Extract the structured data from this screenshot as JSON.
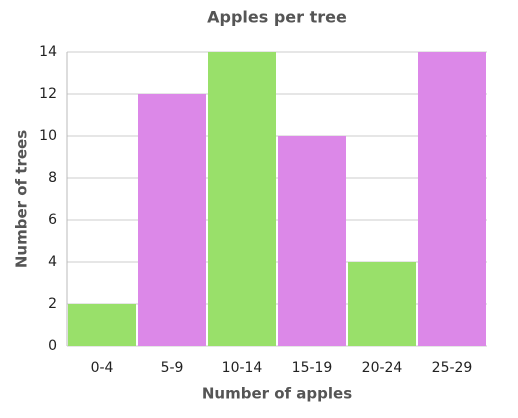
{
  "chart_data": {
    "type": "bar",
    "title": "Apples per tree",
    "x_label": "Number of apples",
    "y_label": "Number of trees",
    "categories": [
      "0-4",
      "5-9",
      "10-14",
      "15-19",
      "20-24",
      "25-29"
    ],
    "values": [
      2,
      12,
      14,
      10,
      4,
      14
    ],
    "colors": [
      "#99e06a",
      "#dc88e8",
      "#99e06a",
      "#dc88e8",
      "#99e06a",
      "#dc88e8"
    ],
    "ylim": [
      0,
      14
    ],
    "yticks": [
      0,
      2,
      4,
      6,
      8,
      10,
      12,
      14
    ],
    "grid": true
  }
}
